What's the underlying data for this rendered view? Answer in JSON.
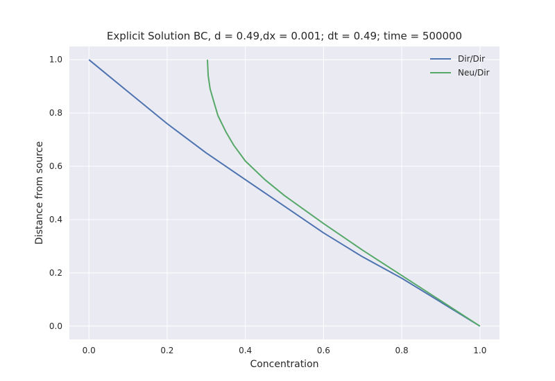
{
  "chart_data": {
    "type": "line",
    "title": "Explicit Solution BC, d = 0.49,dx = 0.001; dt = 0.49; time = 500000",
    "xlabel": "Concentration",
    "ylabel": "Distance from source",
    "xlim": [
      -0.05,
      1.05
    ],
    "ylim": [
      -0.05,
      1.05
    ],
    "xticks": [
      0.0,
      0.2,
      0.4,
      0.6,
      0.8,
      1.0
    ],
    "yticks": [
      0.0,
      0.2,
      0.4,
      0.6,
      0.8,
      1.0
    ],
    "xtick_labels": [
      "0.0",
      "0.2",
      "0.4",
      "0.6",
      "0.8",
      "1.0"
    ],
    "ytick_labels": [
      "0.0",
      "0.2",
      "0.4",
      "0.6",
      "0.8",
      "1.0"
    ],
    "grid": true,
    "legend_position": "top-right",
    "background": "#eaeaf2",
    "series": [
      {
        "name": "Dir/Dir",
        "color": "#4c72b0",
        "points": [
          [
            1.0,
            0.0
          ],
          [
            0.9,
            0.09
          ],
          [
            0.8,
            0.18
          ],
          [
            0.7,
            0.26
          ],
          [
            0.6,
            0.35
          ],
          [
            0.5,
            0.45
          ],
          [
            0.4,
            0.55
          ],
          [
            0.3,
            0.65
          ],
          [
            0.2,
            0.76
          ],
          [
            0.1,
            0.88
          ],
          [
            0.0,
            1.0
          ]
        ]
      },
      {
        "name": "Neu/Dir",
        "color": "#55a868",
        "points": [
          [
            1.0,
            0.0
          ],
          [
            0.9,
            0.095
          ],
          [
            0.8,
            0.19
          ],
          [
            0.7,
            0.285
          ],
          [
            0.6,
            0.385
          ],
          [
            0.5,
            0.49
          ],
          [
            0.45,
            0.55
          ],
          [
            0.4,
            0.62
          ],
          [
            0.37,
            0.68
          ],
          [
            0.35,
            0.73
          ],
          [
            0.33,
            0.79
          ],
          [
            0.32,
            0.84
          ],
          [
            0.31,
            0.89
          ],
          [
            0.305,
            0.94
          ],
          [
            0.303,
            1.0
          ]
        ]
      }
    ]
  }
}
